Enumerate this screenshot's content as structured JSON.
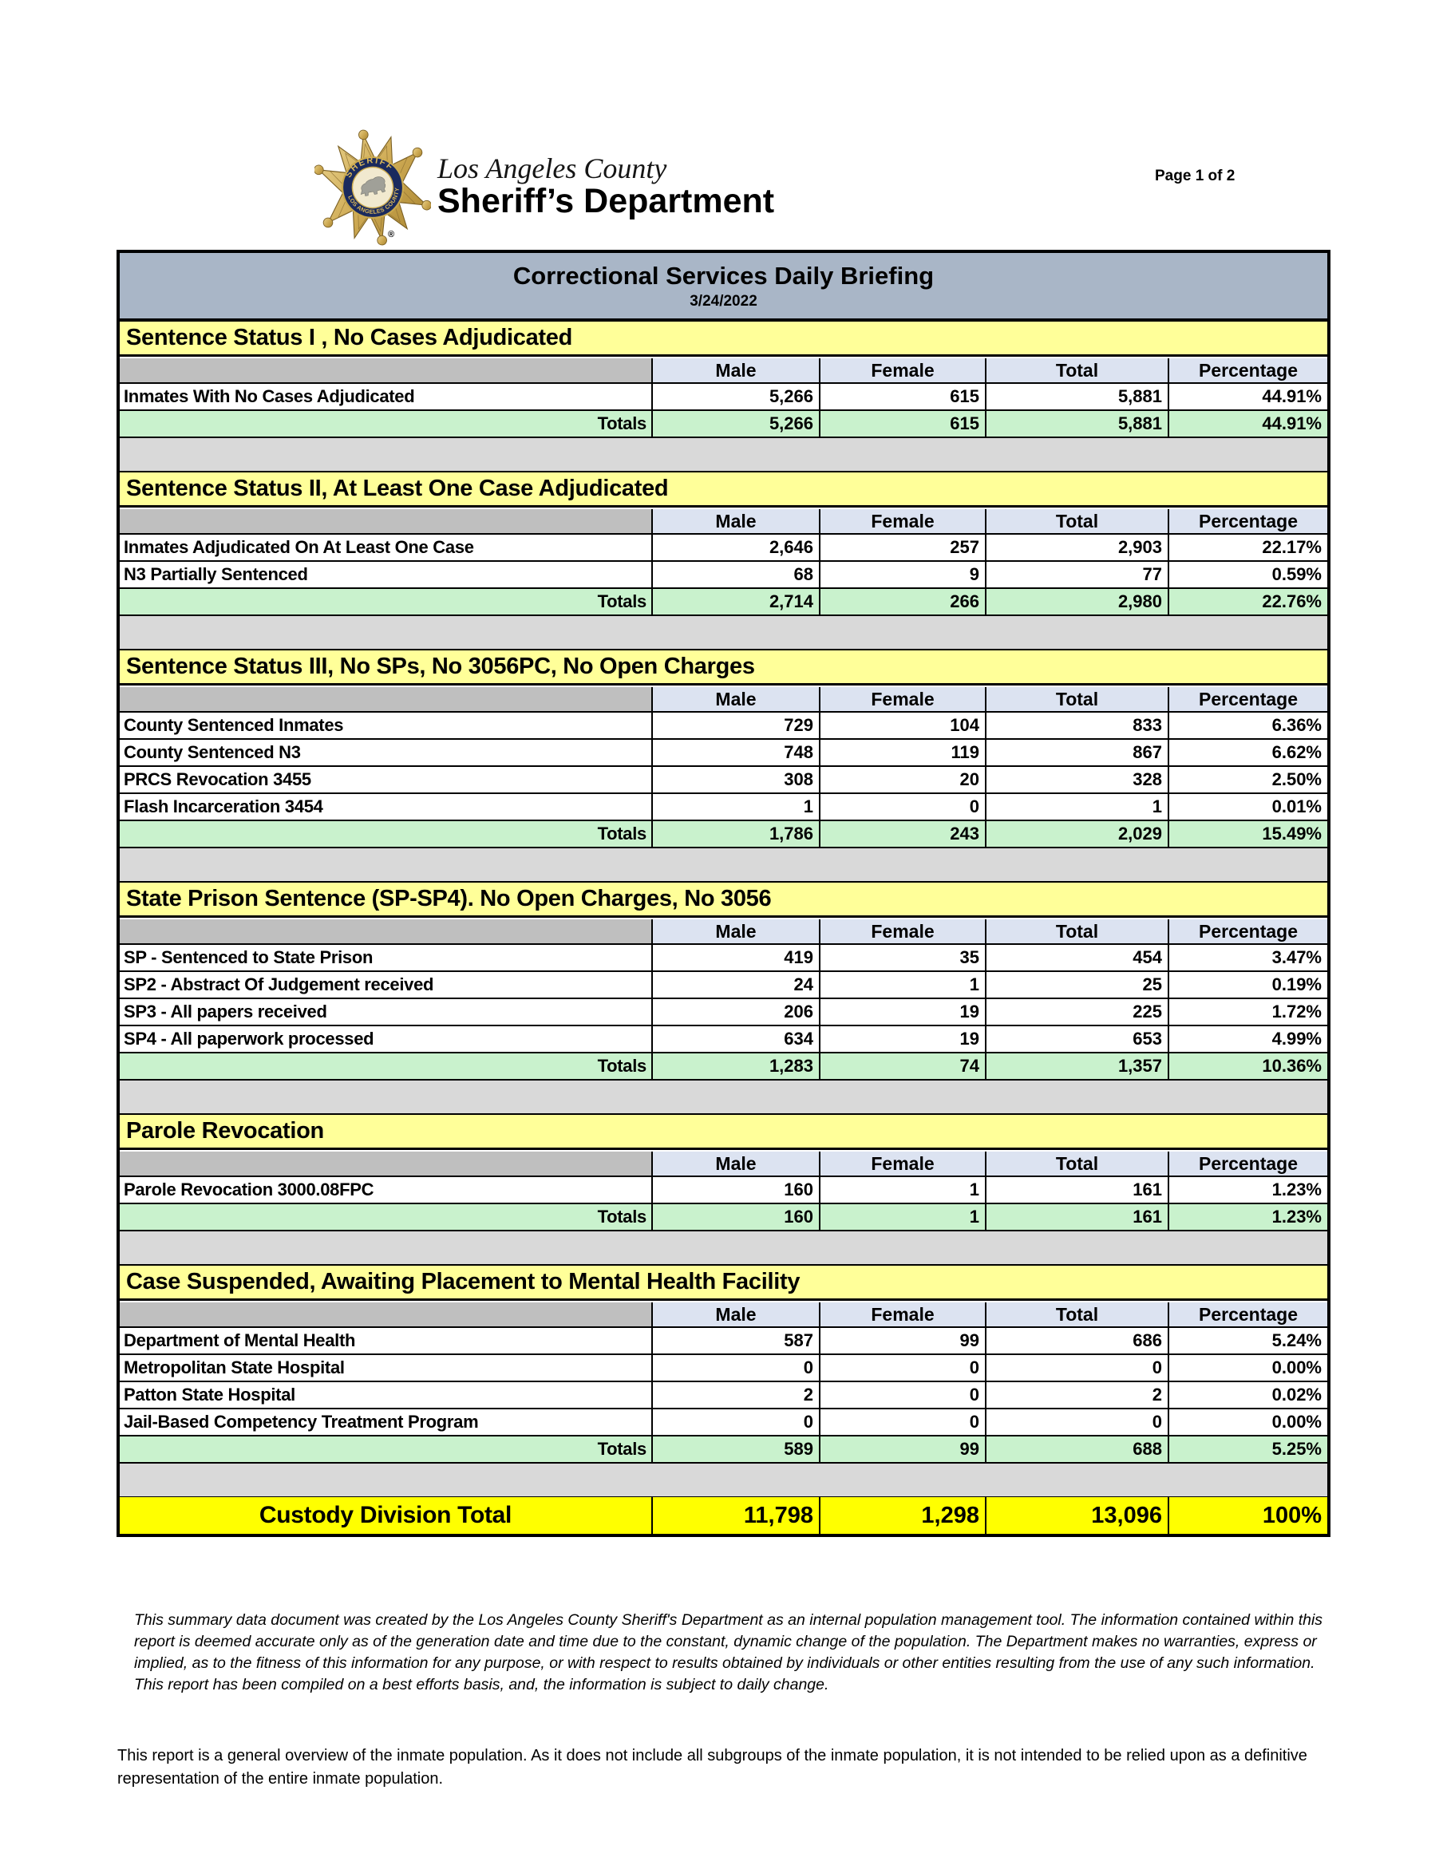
{
  "page": {
    "page_label": "Page 1 of 2"
  },
  "logo": {
    "county_line": "Los Angeles County",
    "dept_line": "Sheriff’s Department",
    "badge_top_text": "SHERIFF",
    "badge_bottom_text": "LOS ANGELES COUNTY",
    "registered_mark": "®"
  },
  "report": {
    "title": "Correctional Services Daily Briefing",
    "date": "3/24/2022",
    "columns": [
      "Male",
      "Female",
      "Total",
      "Percentage"
    ],
    "totals_label": "Totals",
    "sections": [
      {
        "header": "Sentence Status I , No Cases Adjudicated",
        "rows": [
          {
            "label": "Inmates With No Cases Adjudicated",
            "male": "5,266",
            "female": "615",
            "total": "5,881",
            "percentage": "44.91%"
          }
        ],
        "totals": {
          "male": "5,266",
          "female": "615",
          "total": "5,881",
          "percentage": "44.91%"
        }
      },
      {
        "header": "Sentence Status II, At Least One Case Adjudicated",
        "rows": [
          {
            "label": "Inmates Adjudicated On At Least One Case",
            "male": "2,646",
            "female": "257",
            "total": "2,903",
            "percentage": "22.17%"
          },
          {
            "label": "N3 Partially Sentenced",
            "male": "68",
            "female": "9",
            "total": "77",
            "percentage": "0.59%"
          }
        ],
        "totals": {
          "male": "2,714",
          "female": "266",
          "total": "2,980",
          "percentage": "22.76%"
        }
      },
      {
        "header": "Sentence Status III, No SPs, No 3056PC, No Open Charges",
        "rows": [
          {
            "label": "County Sentenced Inmates",
            "male": "729",
            "female": "104",
            "total": "833",
            "percentage": "6.36%"
          },
          {
            "label": "County Sentenced N3",
            "male": "748",
            "female": "119",
            "total": "867",
            "percentage": "6.62%"
          },
          {
            "label": "PRCS Revocation 3455",
            "male": "308",
            "female": "20",
            "total": "328",
            "percentage": "2.50%"
          },
          {
            "label": "Flash Incarceration 3454",
            "male": "1",
            "female": "0",
            "total": "1",
            "percentage": "0.01%"
          }
        ],
        "totals": {
          "male": "1,786",
          "female": "243",
          "total": "2,029",
          "percentage": "15.49%"
        }
      },
      {
        "header": "State Prison Sentence (SP-SP4). No Open Charges, No 3056",
        "rows": [
          {
            "label": "SP - Sentenced to State Prison",
            "male": "419",
            "female": "35",
            "total": "454",
            "percentage": "3.47%"
          },
          {
            "label": "SP2 - Abstract Of Judgement received",
            "male": "24",
            "female": "1",
            "total": "25",
            "percentage": "0.19%"
          },
          {
            "label": "SP3 - All papers received",
            "male": "206",
            "female": "19",
            "total": "225",
            "percentage": "1.72%"
          },
          {
            "label": "SP4 - All paperwork processed",
            "male": "634",
            "female": "19",
            "total": "653",
            "percentage": "4.99%"
          }
        ],
        "totals": {
          "male": "1,283",
          "female": "74",
          "total": "1,357",
          "percentage": "10.36%"
        }
      },
      {
        "header": "Parole Revocation",
        "rows": [
          {
            "label": "Parole Revocation 3000.08FPC",
            "male": "160",
            "female": "1",
            "total": "161",
            "percentage": "1.23%"
          }
        ],
        "totals": {
          "male": "160",
          "female": "1",
          "total": "161",
          "percentage": "1.23%"
        }
      },
      {
        "header": "Case Suspended, Awaiting Placement to Mental Health Facility",
        "rows": [
          {
            "label": "Department of Mental Health",
            "male": "587",
            "female": "99",
            "total": "686",
            "percentage": "5.24%"
          },
          {
            "label": "Metropolitan State Hospital",
            "male": "0",
            "female": "0",
            "total": "0",
            "percentage": "0.00%"
          },
          {
            "label": "Patton State Hospital",
            "male": "2",
            "female": "0",
            "total": "2",
            "percentage": "0.02%"
          },
          {
            "label": "Jail-Based Competency Treatment Program",
            "male": "0",
            "female": "0",
            "total": "0",
            "percentage": "0.00%"
          }
        ],
        "totals": {
          "male": "589",
          "female": "99",
          "total": "688",
          "percentage": "5.25%"
        }
      }
    ],
    "grand_total": {
      "label": "Custody Division Total",
      "male": "11,798",
      "female": "1,298",
      "total": "13,096",
      "percentage": "100%"
    }
  },
  "footer": {
    "disclaimer": "This summary data document was created by the Los Angeles County Sheriff's Department as an internal population management tool.  The information contained within this report is deemed accurate only as of the generation date and time due to the constant, dynamic change of the population.  The Department makes no warranties, express or implied, as to the fitness of this information for any purpose, or with respect to results obtained by individuals or other entities resulting from the use of any such information.  This report has been compiled on a best efforts basis, and, the information is subject to daily change.",
    "note": "This report is a general overview of the inmate population.  As it does not include all subgroups of the inmate population, it is not intended to be relied upon as a definitive representation of the entire inmate population."
  },
  "colors": {
    "title_band": "#a9b6c7",
    "section_header": "#ffff99",
    "column_header": "#dce3f1",
    "empty_header_cell": "#bfbfbf",
    "totals_row": "#c9f2cd",
    "spacer_row": "#d9d9d9",
    "grand_total_row": "#ffff00",
    "badge_gold": "#c9a84c",
    "badge_navy": "#1a2a5e"
  }
}
